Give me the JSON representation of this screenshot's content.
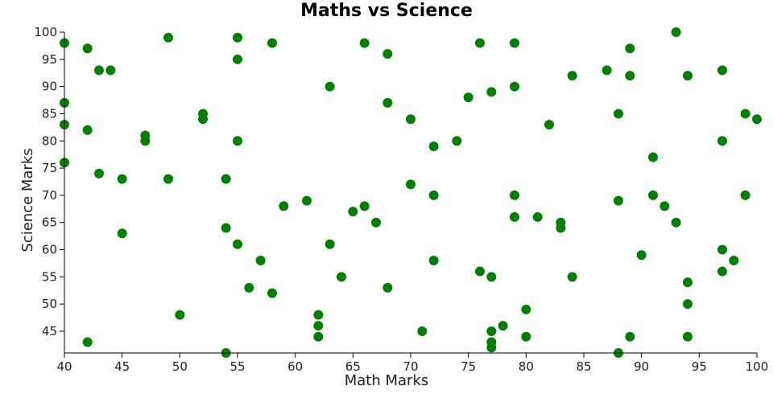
{
  "chart_data": {
    "type": "scatter",
    "title": "Maths vs Science",
    "xlabel": "Math Marks",
    "ylabel": "Science Marks",
    "xlim": [
      40,
      100
    ],
    "ylim": [
      41,
      100
    ],
    "xticks": [
      40,
      45,
      50,
      55,
      60,
      65,
      70,
      75,
      80,
      85,
      90,
      95,
      100
    ],
    "yticks": [
      45,
      50,
      55,
      60,
      65,
      70,
      75,
      80,
      85,
      90,
      95,
      100
    ],
    "grid": false,
    "legend": "none",
    "point_color": "#008000",
    "series": [
      {
        "points": [
          [
            40,
            98
          ],
          [
            40,
            87
          ],
          [
            40,
            83
          ],
          [
            40,
            76
          ],
          [
            42,
            97
          ],
          [
            42,
            82
          ],
          [
            42,
            43
          ],
          [
            43,
            93
          ],
          [
            43,
            74
          ],
          [
            44,
            93
          ],
          [
            45,
            73
          ],
          [
            45,
            63
          ],
          [
            47,
            81
          ],
          [
            47,
            80
          ],
          [
            49,
            99
          ],
          [
            49,
            73
          ],
          [
            50,
            48
          ],
          [
            52,
            85
          ],
          [
            52,
            84
          ],
          [
            54,
            73
          ],
          [
            54,
            64
          ],
          [
            54,
            41
          ],
          [
            55,
            99
          ],
          [
            55,
            95
          ],
          [
            55,
            80
          ],
          [
            55,
            61
          ],
          [
            56,
            53
          ],
          [
            57,
            58
          ],
          [
            58,
            98
          ],
          [
            58,
            52
          ],
          [
            59,
            68
          ],
          [
            61,
            69
          ],
          [
            62,
            48
          ],
          [
            62,
            46
          ],
          [
            62,
            44
          ],
          [
            63,
            90
          ],
          [
            63,
            61
          ],
          [
            64,
            55
          ],
          [
            65,
            67
          ],
          [
            66,
            98
          ],
          [
            66,
            68
          ],
          [
            67,
            65
          ],
          [
            68,
            96
          ],
          [
            68,
            87
          ],
          [
            68,
            53
          ],
          [
            70,
            84
          ],
          [
            70,
            72
          ],
          [
            71,
            45
          ],
          [
            72,
            79
          ],
          [
            72,
            70
          ],
          [
            72,
            58
          ],
          [
            74,
            80
          ],
          [
            75,
            88
          ],
          [
            76,
            98
          ],
          [
            76,
            56
          ],
          [
            77,
            89
          ],
          [
            77,
            55
          ],
          [
            77,
            45
          ],
          [
            77,
            43
          ],
          [
            77,
            42
          ],
          [
            78,
            46
          ],
          [
            79,
            98
          ],
          [
            79,
            90
          ],
          [
            79,
            70
          ],
          [
            79,
            66
          ],
          [
            80,
            49
          ],
          [
            80,
            44
          ],
          [
            81,
            66
          ],
          [
            82,
            83
          ],
          [
            83,
            65
          ],
          [
            83,
            64
          ],
          [
            84,
            92
          ],
          [
            84,
            55
          ],
          [
            87,
            93
          ],
          [
            88,
            85
          ],
          [
            88,
            69
          ],
          [
            88,
            41
          ],
          [
            89,
            97
          ],
          [
            89,
            92
          ],
          [
            89,
            44
          ],
          [
            90,
            59
          ],
          [
            91,
            77
          ],
          [
            91,
            70
          ],
          [
            92,
            68
          ],
          [
            93,
            100
          ],
          [
            93,
            65
          ],
          [
            94,
            92
          ],
          [
            94,
            54
          ],
          [
            94,
            50
          ],
          [
            94,
            44
          ],
          [
            97,
            93
          ],
          [
            97,
            80
          ],
          [
            97,
            60
          ],
          [
            97,
            56
          ],
          [
            98,
            58
          ],
          [
            99,
            85
          ],
          [
            99,
            70
          ],
          [
            100,
            84
          ]
        ]
      }
    ]
  }
}
